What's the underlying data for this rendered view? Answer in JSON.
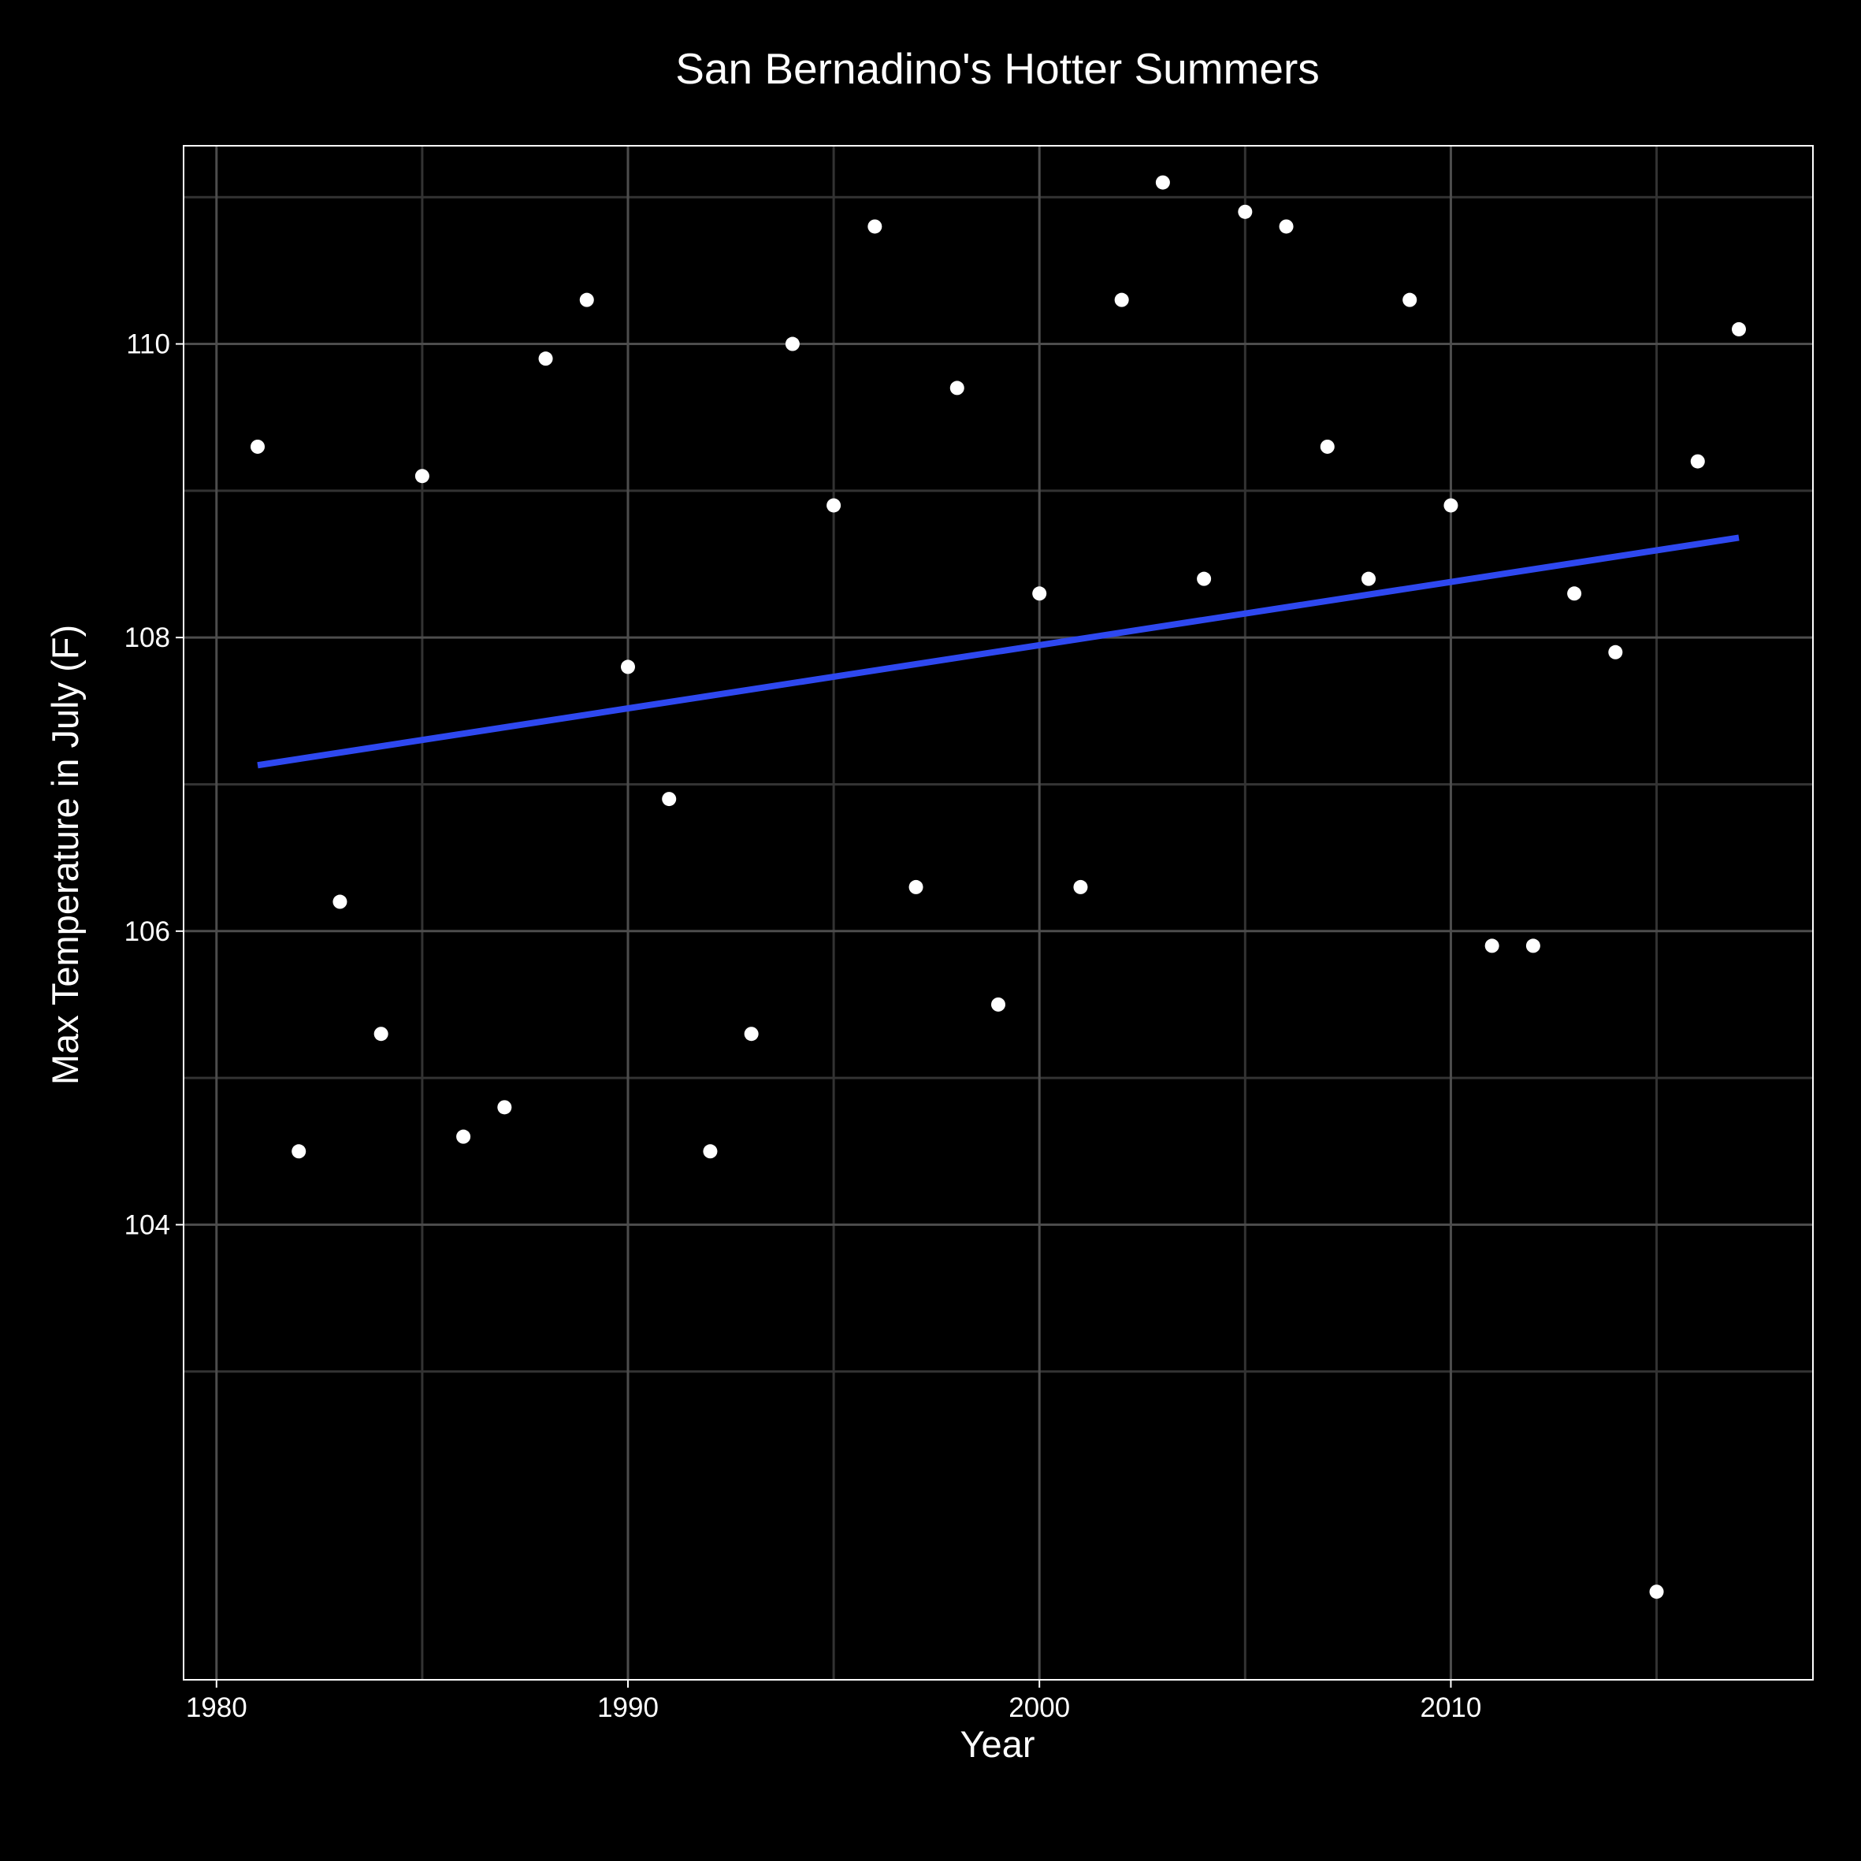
{
  "chart_data": {
    "type": "scatter",
    "title": "San Bernadino's Hotter Summers",
    "xlabel": "Year",
    "ylabel": "Max Temperature in July (F)",
    "xlim": [
      1979.2,
      2018.8
    ],
    "ylim": [
      100.9,
      111.35
    ],
    "x_ticks": [
      1980,
      1990,
      2000,
      2010
    ],
    "y_ticks": [
      104,
      106,
      108,
      110
    ],
    "x_minor_ticks": [
      1985,
      1995,
      2005,
      2015
    ],
    "y_minor_ticks": [
      103,
      105,
      107,
      109,
      111
    ],
    "grid": true,
    "legend": "none",
    "colors": {
      "background": "#000000",
      "grid": "#4d4d4d",
      "points": "#ffffff",
      "trend": "#2e48f0",
      "text": "#ffffff"
    },
    "points": [
      {
        "x": 1981,
        "y": 109.3
      },
      {
        "x": 1982,
        "y": 104.5
      },
      {
        "x": 1983,
        "y": 106.2
      },
      {
        "x": 1984,
        "y": 105.3
      },
      {
        "x": 1985,
        "y": 109.1
      },
      {
        "x": 1986,
        "y": 104.6
      },
      {
        "x": 1987,
        "y": 104.8
      },
      {
        "x": 1988,
        "y": 109.9
      },
      {
        "x": 1989,
        "y": 110.3
      },
      {
        "x": 1990,
        "y": 107.8
      },
      {
        "x": 1991,
        "y": 106.9
      },
      {
        "x": 1992,
        "y": 104.5
      },
      {
        "x": 1993,
        "y": 105.3
      },
      {
        "x": 1994,
        "y": 110.0
      },
      {
        "x": 1995,
        "y": 108.9
      },
      {
        "x": 1996,
        "y": 110.8
      },
      {
        "x": 1997,
        "y": 106.3
      },
      {
        "x": 1998,
        "y": 109.7
      },
      {
        "x": 1999,
        "y": 105.5
      },
      {
        "x": 2000,
        "y": 108.3
      },
      {
        "x": 2001,
        "y": 106.3
      },
      {
        "x": 2002,
        "y": 110.3
      },
      {
        "x": 2003,
        "y": 111.1
      },
      {
        "x": 2004,
        "y": 108.4
      },
      {
        "x": 2005,
        "y": 110.9
      },
      {
        "x": 2006,
        "y": 110.8
      },
      {
        "x": 2007,
        "y": 109.3
      },
      {
        "x": 2008,
        "y": 108.4
      },
      {
        "x": 2009,
        "y": 110.3
      },
      {
        "x": 2010,
        "y": 108.9
      },
      {
        "x": 2011,
        "y": 105.9
      },
      {
        "x": 2012,
        "y": 105.9
      },
      {
        "x": 2013,
        "y": 108.3
      },
      {
        "x": 2014,
        "y": 107.9
      },
      {
        "x": 2015,
        "y": 101.5
      },
      {
        "x": 2016,
        "y": 109.2
      },
      {
        "x": 2017,
        "y": 110.1
      }
    ],
    "trend_line": {
      "x": [
        1981,
        2017
      ],
      "y": [
        107.13,
        108.68
      ]
    }
  }
}
